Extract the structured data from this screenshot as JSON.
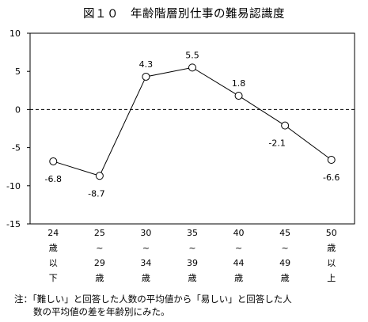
{
  "chart_data": {
    "type": "line",
    "title": "図１０　年齢階層別仕事の難易認識度",
    "categories": [
      [
        "24",
        "歳",
        "以",
        "下"
      ],
      [
        "25",
        "~",
        "29",
        "歳"
      ],
      [
        "30",
        "~",
        "34",
        "歳"
      ],
      [
        "35",
        "~",
        "39",
        "歳"
      ],
      [
        "40",
        "~",
        "44",
        "歳"
      ],
      [
        "45",
        "~",
        "49",
        "歳"
      ],
      [
        "50",
        "歳",
        "以",
        "上"
      ]
    ],
    "series": [
      {
        "values": [
          -6.8,
          -8.7,
          4.3,
          5.5,
          1.8,
          -2.1,
          -6.6
        ]
      }
    ],
    "data_labels": [
      "-6.8",
      "-8.7",
      "4.3",
      "5.5",
      "1.8",
      "-2.1",
      "-6.6"
    ],
    "ylim": [
      -15,
      10
    ],
    "yticks": [
      10,
      5,
      0,
      -5,
      -10,
      -15
    ],
    "ytick_labels": [
      "10",
      "5",
      "0",
      "-5",
      "-10",
      "-15"
    ],
    "reference_line": {
      "y": 0,
      "style": "dashed"
    },
    "grid": false,
    "legend": "none",
    "colors": {
      "line": "#000000",
      "marker_fill": "#ffffff",
      "marker_stroke": "#000000"
    }
  },
  "note": {
    "line1": "注：「難しい」と回答した人数の平均値から「易しい」と回答した人",
    "line2": "数の平均値の差を年齢別にみた。"
  }
}
